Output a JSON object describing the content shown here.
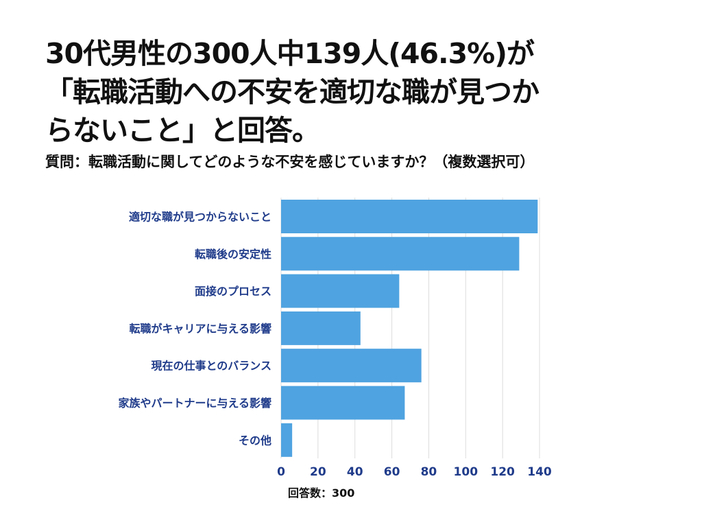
{
  "title": "30代男性の300人中139人(46.3%)が\n「転職活動への不安を適切な職が見つか\nらないこと」と回答。",
  "question": "質問：転職活動に関してどのような不安を感じていますか？（複数選択可）",
  "footer": "回答数：300",
  "colors": {
    "bar": "#4fa3e0",
    "label": "#1f3b8a",
    "grid": "#dcdcdc"
  },
  "chart_data": {
    "type": "bar",
    "orientation": "horizontal",
    "categories": [
      "適切な職が見つからないこと",
      "転職後の安定性",
      "面接のプロセス",
      "転職がキャリアに与える影響",
      "現在の仕事とのバランス",
      "家族やパートナーに与える影響",
      "その他"
    ],
    "values": [
      139,
      129,
      64,
      43,
      76,
      67,
      6
    ],
    "xlim": [
      0,
      140
    ],
    "xticks": [
      0,
      20,
      40,
      60,
      80,
      100,
      120,
      140
    ],
    "grid": true
  }
}
